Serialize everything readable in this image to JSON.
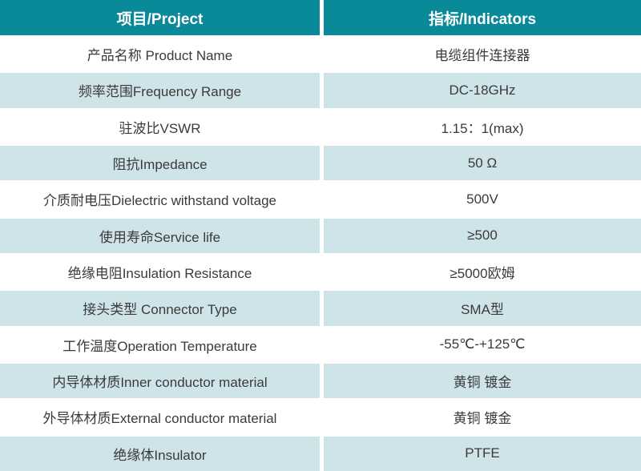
{
  "table": {
    "columns": [
      {
        "label": "项目/Project"
      },
      {
        "label": "指标/Indicators"
      }
    ],
    "rows": [
      {
        "project": "产品名称 Product Name",
        "indicator": "电缆组件连接器"
      },
      {
        "project": "频率范围Frequency Range",
        "indicator": "DC-18GHz"
      },
      {
        "project": "驻波比VSWR",
        "indicator": "1.15：1(max)"
      },
      {
        "project": "阻抗Impedance",
        "indicator": "50 Ω"
      },
      {
        "project": "介质耐电压Dielectric withstand voltage",
        "indicator": "500V"
      },
      {
        "project": "使用寿命Service life",
        "indicator": "≥500"
      },
      {
        "project": "绝缘电阻Insulation Resistance",
        "indicator": "≥5000欧姆"
      },
      {
        "project": "接头类型 Connector Type",
        "indicator": "SMA型"
      },
      {
        "project": "工作温度Operation Temperature",
        "indicator": "-55℃-+125℃"
      },
      {
        "project": "内导体材质Inner conductor material",
        "indicator": "黄铜 镀金"
      },
      {
        "project": "外导体材质External conductor material",
        "indicator": "黄铜 镀金"
      },
      {
        "project": "绝缘体Insulator",
        "indicator": "PTFE"
      }
    ]
  },
  "colors": {
    "header_bg": "#0a8a99",
    "header_text": "#ffffff",
    "row_bg": "#ffffff",
    "row_alt_bg": "#cfe4e9",
    "body_text": "#3a3a3a"
  }
}
